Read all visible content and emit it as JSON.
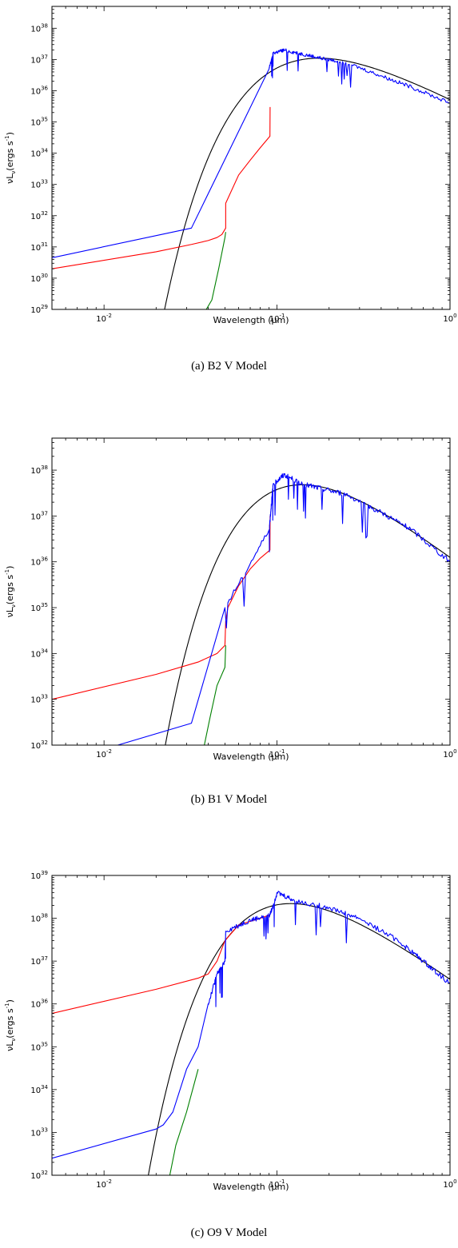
{
  "chart_data": [
    {
      "type": "line",
      "caption": "(a) B2 V Model",
      "xlabel": "Wavelength (μm)",
      "ylabel": "νL",
      "ylabel_sub": "ν",
      "ylabel_unit": "(ergs s",
      "ylabel_exp": "-1",
      "ylabel_close": ")",
      "x_scale": "log",
      "y_scale": "log",
      "xlim": [
        0.005,
        1.0
      ],
      "ylim": [
        1e+29,
        5e+38
      ],
      "x_ticks": [
        {
          "value": 0.01,
          "base": "10",
          "exp": "-2"
        },
        {
          "value": 0.1,
          "base": "10",
          "exp": "-1"
        },
        {
          "value": 1.0,
          "base": "10",
          "exp": "0"
        }
      ],
      "y_ticks": [
        {
          "value": 1e+29,
          "base": "10",
          "exp": "29"
        },
        {
          "value": 1e+30,
          "base": "10",
          "exp": "30"
        },
        {
          "value": 1e+31,
          "base": "10",
          "exp": "31"
        },
        {
          "value": 1e+32,
          "base": "10",
          "exp": "32"
        },
        {
          "value": 1e+33,
          "base": "10",
          "exp": "33"
        },
        {
          "value": 1e+34,
          "base": "10",
          "exp": "34"
        },
        {
          "value": 1e+35,
          "base": "10",
          "exp": "35"
        },
        {
          "value": 1e+36,
          "base": "10",
          "exp": "36"
        },
        {
          "value": 1e+37,
          "base": "10",
          "exp": "37"
        },
        {
          "value": 1e+38,
          "base": "10",
          "exp": "38"
        }
      ],
      "series": [
        {
          "color": "#000000",
          "kind": "blackbody",
          "peak_wavelength": 0.175,
          "peak_value": 1.1e+37
        },
        {
          "color": "#008000",
          "points": [
            [
              0.039,
              1e+29
            ],
            [
              0.042,
              2e+29
            ],
            [
              0.046,
              2e+30
            ],
            [
              0.05,
              2e+31
            ],
            [
              0.0505,
              3e+31
            ]
          ]
        },
        {
          "color": "#ff0000",
          "points": [
            [
              0.005,
              2e+30
            ],
            [
              0.02,
              7e+30
            ],
            [
              0.032,
              1.2e+31
            ],
            [
              0.04,
              1.6e+31
            ],
            [
              0.045,
              2e+31
            ],
            [
              0.048,
              2.5e+31
            ],
            [
              0.0505,
              4e+31
            ],
            [
              0.0505,
              2.5e+32
            ],
            [
              0.06,
              2e+33
            ],
            [
              0.07,
              6e+33
            ],
            [
              0.08,
              1.5e+34
            ],
            [
              0.091,
              3.5e+34
            ],
            [
              0.0912,
              3e+35
            ]
          ]
        },
        {
          "color": "#0000ff",
          "noisy": true,
          "points": [
            [
              0.005,
              4.5e+30
            ],
            [
              0.032,
              4e+31
            ],
            [
              0.09,
              5e+36
            ],
            [
              0.095,
              1.6e+37
            ],
            [
              0.11,
              2e+37
            ],
            [
              0.14,
              1.5e+37
            ],
            [
              0.18,
              1.1e+37
            ],
            [
              0.25,
              8e+36
            ],
            [
              0.4,
              3e+36
            ],
            [
              0.6,
              1.3e+36
            ],
            [
              1.0,
              4e+35
            ]
          ]
        }
      ]
    },
    {
      "type": "line",
      "caption": "(b) B1 V Model",
      "xlabel": "Wavelength (μm)",
      "ylabel": "νL",
      "ylabel_sub": "ν",
      "ylabel_unit": "(ergs s",
      "ylabel_exp": "-1",
      "ylabel_close": ")",
      "x_scale": "log",
      "y_scale": "log",
      "xlim": [
        0.005,
        1.0
      ],
      "ylim": [
        1e+32,
        5e+38
      ],
      "x_ticks": [
        {
          "value": 0.01,
          "base": "10",
          "exp": "-2"
        },
        {
          "value": 0.1,
          "base": "10",
          "exp": "-1"
        },
        {
          "value": 1.0,
          "base": "10",
          "exp": "0"
        }
      ],
      "y_ticks": [
        {
          "value": 1e+32,
          "base": "10",
          "exp": "32"
        },
        {
          "value": 1e+33,
          "base": "10",
          "exp": "33"
        },
        {
          "value": 1e+34,
          "base": "10",
          "exp": "34"
        },
        {
          "value": 1e+35,
          "base": "10",
          "exp": "35"
        },
        {
          "value": 1e+36,
          "base": "10",
          "exp": "36"
        },
        {
          "value": 1e+37,
          "base": "10",
          "exp": "37"
        },
        {
          "value": 1e+38,
          "base": "10",
          "exp": "38"
        }
      ],
      "series": [
        {
          "color": "#000000",
          "kind": "blackbody",
          "peak_wavelength": 0.14,
          "peak_value": 4.8e+37
        },
        {
          "color": "#008000",
          "points": [
            [
              0.038,
              1e+32
            ],
            [
              0.041,
              4e+32
            ],
            [
              0.045,
              2e+33
            ],
            [
              0.05,
              5e+33
            ],
            [
              0.0505,
              1.5e+34
            ]
          ]
        },
        {
          "color": "#ff0000",
          "points": [
            [
              0.005,
              1e+33
            ],
            [
              0.02,
              3.5e+33
            ],
            [
              0.035,
              6.5e+33
            ],
            [
              0.045,
              1e+34
            ],
            [
              0.05,
              1.5e+34
            ],
            [
              0.0505,
              5e+34
            ],
            [
              0.052,
              1e+35
            ],
            [
              0.06,
              3e+35
            ],
            [
              0.07,
              7e+35
            ],
            [
              0.08,
              1.2e+36
            ],
            [
              0.091,
              1.8e+36
            ],
            [
              0.0912,
              1e+37
            ]
          ]
        },
        {
          "color": "#0000ff",
          "noisy": true,
          "points": [
            [
              0.012,
              1e+32
            ],
            [
              0.032,
              3e+32
            ],
            [
              0.05,
              1e+35
            ],
            [
              0.09,
              5e+36
            ],
            [
              0.095,
              5e+37
            ],
            [
              0.11,
              8e+37
            ],
            [
              0.14,
              5e+37
            ],
            [
              0.18,
              4e+37
            ],
            [
              0.25,
              3e+37
            ],
            [
              0.4,
              1.2e+37
            ],
            [
              0.6,
              5e+36
            ],
            [
              1.0,
              1e+36
            ]
          ]
        }
      ]
    },
    {
      "type": "line",
      "caption": "(c) O9 V Model",
      "xlabel": "Wavelength (μm)",
      "ylabel": "νL",
      "ylabel_sub": "ν",
      "ylabel_unit": "(ergs s",
      "ylabel_exp": "-1",
      "ylabel_close": ")",
      "x_scale": "log",
      "y_scale": "log",
      "xlim": [
        0.005,
        1.0
      ],
      "ylim": [
        1e+32,
        1e+39
      ],
      "x_ticks": [
        {
          "value": 0.01,
          "base": "10",
          "exp": "-2"
        },
        {
          "value": 0.1,
          "base": "10",
          "exp": "-1"
        },
        {
          "value": 1.0,
          "base": "10",
          "exp": "0"
        }
      ],
      "y_ticks": [
        {
          "value": 1e+32,
          "base": "10",
          "exp": "32"
        },
        {
          "value": 1e+33,
          "base": "10",
          "exp": "33"
        },
        {
          "value": 1e+34,
          "base": "10",
          "exp": "34"
        },
        {
          "value": 1e+35,
          "base": "10",
          "exp": "35"
        },
        {
          "value": 1e+36,
          "base": "10",
          "exp": "36"
        },
        {
          "value": 1e+37,
          "base": "10",
          "exp": "37"
        },
        {
          "value": 1e+38,
          "base": "10",
          "exp": "38"
        },
        {
          "value": 1e+39,
          "base": "10",
          "exp": "39"
        }
      ],
      "series": [
        {
          "color": "#000000",
          "kind": "blackbody",
          "peak_wavelength": 0.12,
          "peak_value": 2.2e+38
        },
        {
          "color": "#008000",
          "points": [
            [
              0.024,
              1e+32
            ],
            [
              0.026,
              5e+32
            ],
            [
              0.03,
              3e+33
            ],
            [
              0.035,
              3e+34
            ]
          ]
        },
        {
          "color": "#ff0000",
          "points": [
            [
              0.005,
              6e+35
            ],
            [
              0.02,
              2.2e+36
            ],
            [
              0.035,
              4e+36
            ],
            [
              0.04,
              5e+36
            ],
            [
              0.045,
              1e+37
            ],
            [
              0.05,
              3e+37
            ],
            [
              0.06,
              7e+37
            ],
            [
              0.08,
              1e+38
            ],
            [
              0.091,
              1.2e+38
            ]
          ]
        },
        {
          "color": "#0000ff",
          "noisy": true,
          "points": [
            [
              0.005,
              2.5e+32
            ],
            [
              0.02,
              1.2e+33
            ],
            [
              0.022,
              1.5e+33
            ],
            [
              0.025,
              3e+33
            ],
            [
              0.03,
              3e+34
            ],
            [
              0.035,
              1e+35
            ],
            [
              0.04,
              1e+36
            ],
            [
              0.045,
              5e+36
            ],
            [
              0.05,
              1e+37
            ],
            [
              0.0505,
              5e+37
            ],
            [
              0.07,
              9e+37
            ],
            [
              0.091,
              1.2e+38
            ],
            [
              0.1,
              4e+38
            ],
            [
              0.13,
              2.5e+38
            ],
            [
              0.2,
              1.8e+38
            ],
            [
              0.3,
              1e+38
            ],
            [
              0.5,
              3e+37
            ],
            [
              0.7,
              1e+37
            ],
            [
              1.0,
              3e+36
            ]
          ]
        }
      ]
    }
  ]
}
